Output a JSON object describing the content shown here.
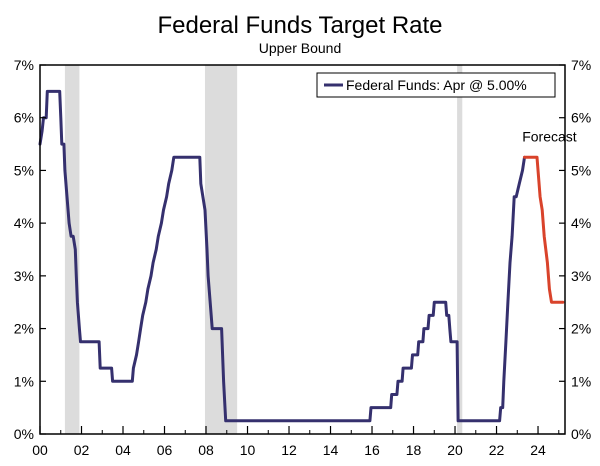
{
  "chart_data": {
    "type": "line",
    "title": "Federal Funds Target Rate",
    "subtitle": "Upper Bound",
    "xlim": [
      2000,
      2025.3
    ],
    "ylim": [
      0,
      7
    ],
    "y_ticks": [
      "0%",
      "1%",
      "2%",
      "3%",
      "4%",
      "5%",
      "6%",
      "7%"
    ],
    "x_ticks": [
      {
        "year": 2000,
        "label": "00"
      },
      {
        "year": 2002,
        "label": "02"
      },
      {
        "year": 2004,
        "label": "04"
      },
      {
        "year": 2006,
        "label": "06"
      },
      {
        "year": 2008,
        "label": "08"
      },
      {
        "year": 2010,
        "label": "10"
      },
      {
        "year": 2012,
        "label": "12"
      },
      {
        "year": 2014,
        "label": "14"
      },
      {
        "year": 2016,
        "label": "16"
      },
      {
        "year": 2018,
        "label": "18"
      },
      {
        "year": 2020,
        "label": "20"
      },
      {
        "year": 2022,
        "label": "22"
      },
      {
        "year": 2024,
        "label": "24"
      }
    ],
    "right_axis_duplicate": true,
    "grid": false,
    "legend": {
      "position": "top-right",
      "label": "Federal Funds: Apr @ 5.00%"
    },
    "recessions": [
      [
        2001.2,
        2001.9
      ],
      [
        2007.95,
        2009.5
      ],
      [
        2020.1,
        2020.35
      ]
    ],
    "annotations": [
      {
        "text": "Forecast",
        "year": 2024.55,
        "value": 5.55
      }
    ],
    "series": [
      {
        "name": "Federal Funds: Apr @ 5.00%",
        "color": "#35306e",
        "points": [
          [
            2000.0,
            5.5
          ],
          [
            2000.1,
            5.75
          ],
          [
            2000.17,
            6.0
          ],
          [
            2000.3,
            6.0
          ],
          [
            2000.35,
            6.5
          ],
          [
            2000.95,
            6.5
          ],
          [
            2001.0,
            6.0
          ],
          [
            2001.05,
            5.5
          ],
          [
            2001.15,
            5.5
          ],
          [
            2001.2,
            5.0
          ],
          [
            2001.3,
            4.5
          ],
          [
            2001.4,
            4.0
          ],
          [
            2001.5,
            3.75
          ],
          [
            2001.6,
            3.75
          ],
          [
            2001.7,
            3.5
          ],
          [
            2001.75,
            3.0
          ],
          [
            2001.8,
            2.5
          ],
          [
            2001.9,
            2.0
          ],
          [
            2001.95,
            1.75
          ],
          [
            2002.85,
            1.75
          ],
          [
            2002.9,
            1.25
          ],
          [
            2003.45,
            1.25
          ],
          [
            2003.5,
            1.0
          ],
          [
            2004.45,
            1.0
          ],
          [
            2004.5,
            1.25
          ],
          [
            2004.65,
            1.5
          ],
          [
            2004.75,
            1.75
          ],
          [
            2004.85,
            2.0
          ],
          [
            2004.95,
            2.25
          ],
          [
            2005.1,
            2.5
          ],
          [
            2005.2,
            2.75
          ],
          [
            2005.35,
            3.0
          ],
          [
            2005.45,
            3.25
          ],
          [
            2005.6,
            3.5
          ],
          [
            2005.7,
            3.75
          ],
          [
            2005.85,
            4.0
          ],
          [
            2005.95,
            4.25
          ],
          [
            2006.1,
            4.5
          ],
          [
            2006.2,
            4.75
          ],
          [
            2006.35,
            5.0
          ],
          [
            2006.45,
            5.25
          ],
          [
            2007.7,
            5.25
          ],
          [
            2007.75,
            4.75
          ],
          [
            2007.85,
            4.5
          ],
          [
            2007.95,
            4.25
          ],
          [
            2008.05,
            3.5
          ],
          [
            2008.1,
            3.0
          ],
          [
            2008.25,
            2.25
          ],
          [
            2008.3,
            2.0
          ],
          [
            2008.75,
            2.0
          ],
          [
            2008.8,
            1.5
          ],
          [
            2008.85,
            1.0
          ],
          [
            2008.95,
            0.25
          ],
          [
            2015.9,
            0.25
          ],
          [
            2015.95,
            0.5
          ],
          [
            2016.9,
            0.5
          ],
          [
            2016.95,
            0.75
          ],
          [
            2017.2,
            0.75
          ],
          [
            2017.25,
            1.0
          ],
          [
            2017.45,
            1.0
          ],
          [
            2017.5,
            1.25
          ],
          [
            2017.9,
            1.25
          ],
          [
            2017.95,
            1.5
          ],
          [
            2018.2,
            1.5
          ],
          [
            2018.25,
            1.75
          ],
          [
            2018.45,
            1.75
          ],
          [
            2018.5,
            2.0
          ],
          [
            2018.7,
            2.0
          ],
          [
            2018.75,
            2.25
          ],
          [
            2018.95,
            2.25
          ],
          [
            2019.0,
            2.5
          ],
          [
            2019.55,
            2.5
          ],
          [
            2019.6,
            2.25
          ],
          [
            2019.7,
            2.25
          ],
          [
            2019.75,
            2.0
          ],
          [
            2019.8,
            1.75
          ],
          [
            2020.1,
            1.75
          ],
          [
            2020.15,
            0.25
          ],
          [
            2022.15,
            0.25
          ],
          [
            2022.2,
            0.5
          ],
          [
            2022.3,
            0.5
          ],
          [
            2022.35,
            1.0
          ],
          [
            2022.45,
            1.75
          ],
          [
            2022.55,
            2.5
          ],
          [
            2022.65,
            3.25
          ],
          [
            2022.75,
            3.75
          ],
          [
            2022.85,
            4.5
          ],
          [
            2022.95,
            4.5
          ],
          [
            2023.1,
            4.75
          ],
          [
            2023.25,
            5.0
          ],
          [
            2023.35,
            5.25
          ],
          [
            2023.35,
            5.25
          ]
        ]
      },
      {
        "name": "Forecast",
        "color": "#d9432b",
        "points": [
          [
            2023.35,
            5.25
          ],
          [
            2023.95,
            5.25
          ],
          [
            2024.1,
            4.5
          ],
          [
            2024.2,
            4.25
          ],
          [
            2024.3,
            3.75
          ],
          [
            2024.45,
            3.25
          ],
          [
            2024.55,
            2.75
          ],
          [
            2024.65,
            2.5
          ],
          [
            2025.2,
            2.5
          ]
        ]
      }
    ]
  },
  "colors": {
    "recession_band": "#dcdcdc",
    "axis": "#000000",
    "text": "#000000"
  }
}
